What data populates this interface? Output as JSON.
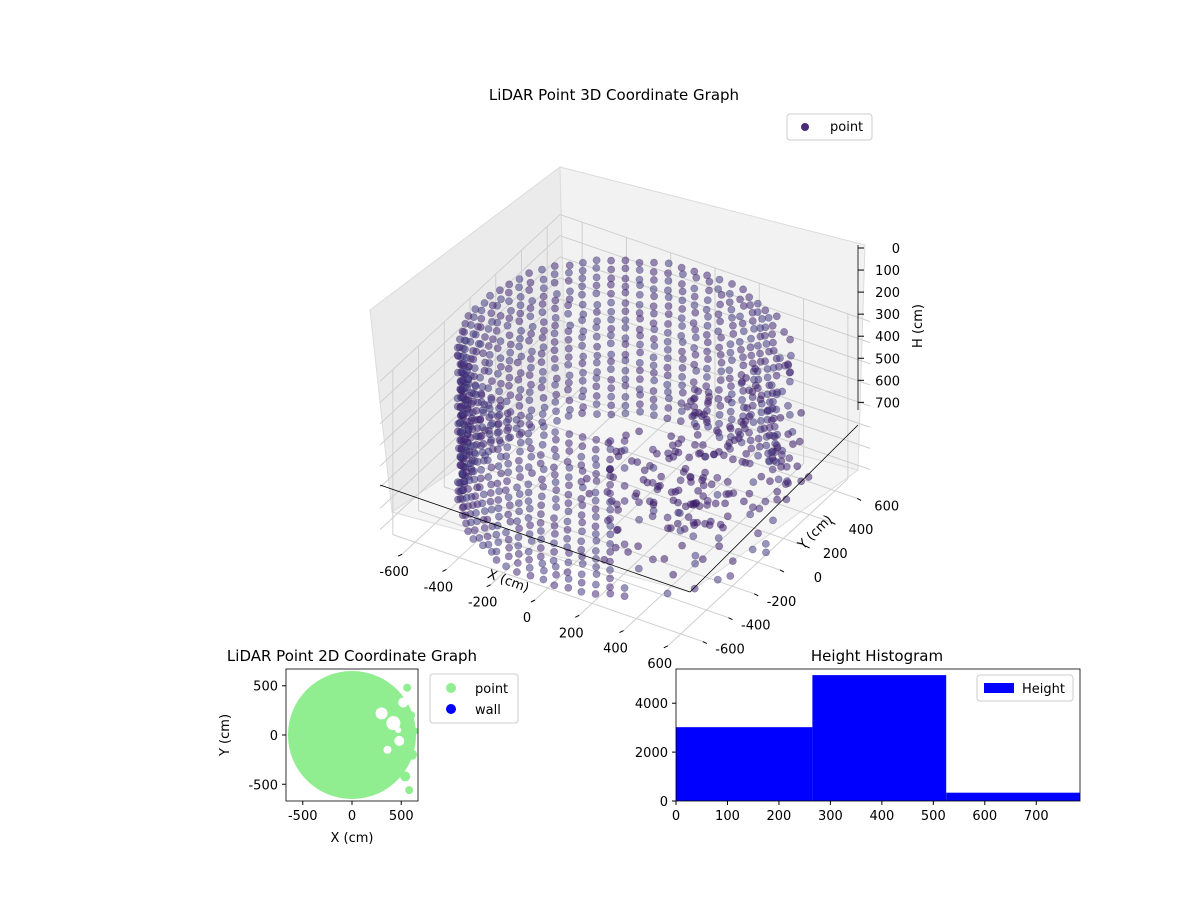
{
  "chart_data": [
    {
      "type": "scatter",
      "projection": "3d",
      "title": "LiDAR Point 3D Coordinate Graph",
      "xlabel": "X (cm)",
      "ylabel": "Y (cm)",
      "zlabel": "H (cm)",
      "xlim": [
        -700,
        700
      ],
      "ylim": [
        -700,
        700
      ],
      "zlim": [
        0,
        780
      ],
      "z_inverted": true,
      "x_ticks": [
        -600,
        -400,
        -200,
        0,
        200,
        400,
        600
      ],
      "y_ticks": [
        -600,
        -400,
        -200,
        0,
        200,
        400,
        600
      ],
      "z_ticks": [
        0,
        100,
        200,
        300,
        400,
        500,
        600,
        700
      ],
      "grid": true,
      "legend": {
        "position": "top-right",
        "entries": [
          "point"
        ]
      },
      "series": [
        {
          "name": "point",
          "color": "#4b2a7a",
          "shape": "cylindrical wall of radius about 650 cm with interior clutter",
          "radius": 650,
          "height_range": [
            0,
            780
          ]
        }
      ]
    },
    {
      "type": "scatter",
      "title": "LiDAR Point 2D Coordinate Graph",
      "xlabel": "X (cm)",
      "ylabel": "Y (cm)",
      "xlim": [
        -670,
        670
      ],
      "ylim": [
        -670,
        670
      ],
      "x_ticks": [
        -500,
        0,
        500
      ],
      "y_ticks": [
        -500,
        0,
        500
      ],
      "legend": {
        "position": "outside-right",
        "entries": [
          "point",
          "wall"
        ]
      },
      "series": [
        {
          "name": "point",
          "color": "#90ee90",
          "radius": 650
        },
        {
          "name": "wall",
          "color": "#0000ff"
        }
      ]
    },
    {
      "type": "histogram",
      "title": "Height Histogram",
      "xlim": [
        0,
        785
      ],
      "ylim": [
        0,
        5400
      ],
      "x_ticks": [
        0,
        100,
        200,
        300,
        400,
        500,
        600,
        700
      ],
      "y_ticks": [
        0,
        2000,
        4000
      ],
      "legend": {
        "position": "top-right",
        "entries": [
          "Height"
        ]
      },
      "bins": [
        {
          "from": 0,
          "to": 265,
          "count": 3020
        },
        {
          "from": 265,
          "to": 525,
          "count": 5150
        },
        {
          "from": 525,
          "to": 785,
          "count": 340
        }
      ],
      "color": "#0000ff",
      "series": [
        {
          "name": "Height"
        }
      ]
    }
  ]
}
